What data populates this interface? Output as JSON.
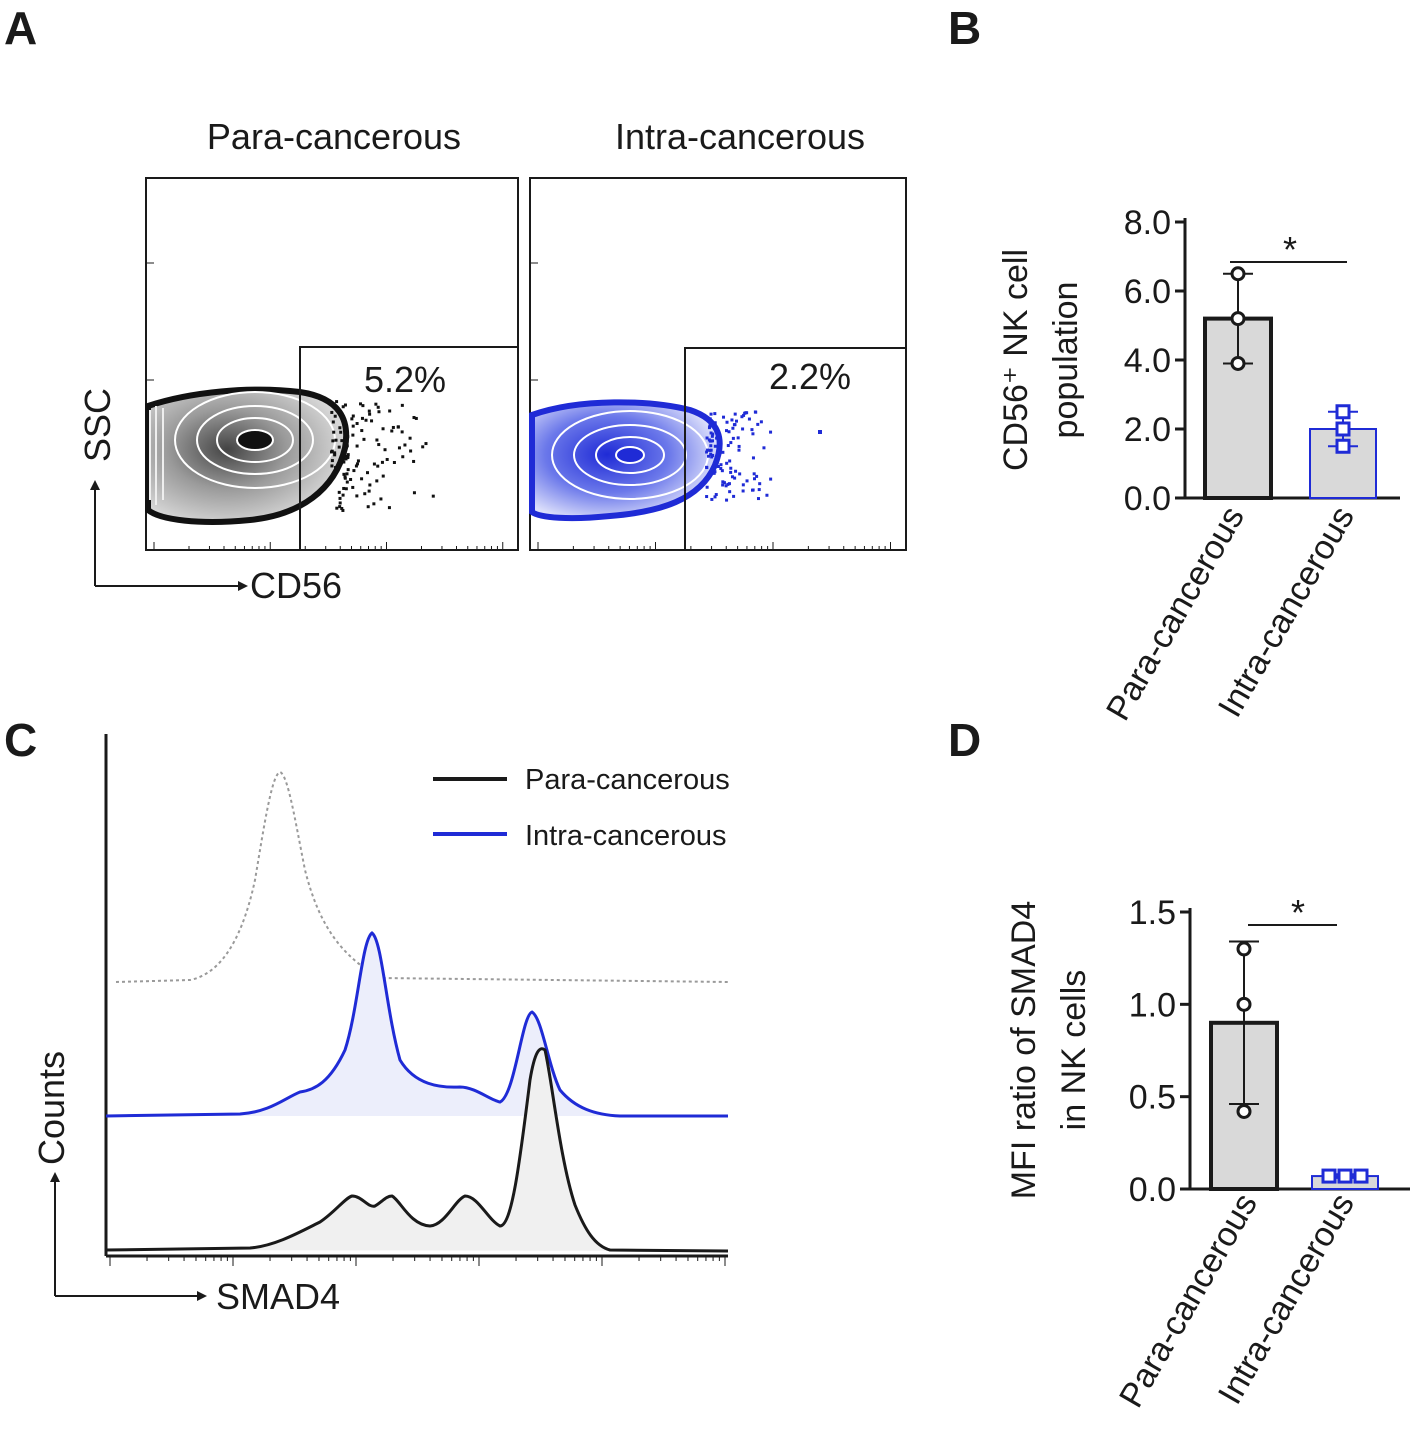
{
  "panel_labels": [
    "A",
    "B",
    "C",
    "D"
  ],
  "colors": {
    "para": "#1a1a1a",
    "intra": "#1f2bd6",
    "bar_fill": "#d9d9d9",
    "isotype": "#9a9a9a",
    "para_fill": "#f0f0f0",
    "intra_fill": "#eceefb"
  },
  "panel_a": {
    "titles": [
      "Para-cancerous",
      "Intra-cancerous"
    ],
    "y_axis_label": "SSC",
    "x_axis_label": "CD56",
    "gate_percentages": [
      "5.2%",
      "2.2%"
    ]
  },
  "panel_c": {
    "x_axis_label": "SMAD4",
    "y_axis_label": "Counts",
    "legend": [
      {
        "label": "Para-cancerous",
        "color": "#1a1a1a"
      },
      {
        "label": "Intra-cancerous",
        "color": "#1f2bd6"
      }
    ]
  },
  "chart_data": [
    {
      "panel": "B",
      "type": "bar",
      "categories": [
        "Para-cancerous",
        "Intra-cancerous"
      ],
      "values": [
        5.2,
        2.0
      ],
      "error": [
        1.3,
        0.5
      ],
      "points": [
        [
          6.5,
          5.2,
          3.9
        ],
        [
          2.5,
          2.0,
          1.5
        ]
      ],
      "ylabel_line1": "CD56⁺ NK cell",
      "ylabel_line2": "population",
      "ylim": [
        0,
        8
      ],
      "yticks": [
        "0.0",
        "2.0",
        "4.0",
        "6.0",
        "8.0"
      ],
      "significance": "*"
    },
    {
      "panel": "D",
      "type": "bar",
      "categories": [
        "Para-cancerous",
        "Intra-cancerous"
      ],
      "values": [
        0.9,
        0.07
      ],
      "error": [
        0.44,
        0.01
      ],
      "points": [
        [
          1.3,
          1.0,
          0.42
        ],
        [
          0.07,
          0.07,
          0.07
        ]
      ],
      "ylabel_line1": "MFI ratio of SMAD4",
      "ylabel_line2": "in NK cells",
      "ylim": [
        0,
        1.5
      ],
      "yticks": [
        "0.0",
        "0.5",
        "1.0",
        "1.5"
      ],
      "significance": "*"
    }
  ]
}
